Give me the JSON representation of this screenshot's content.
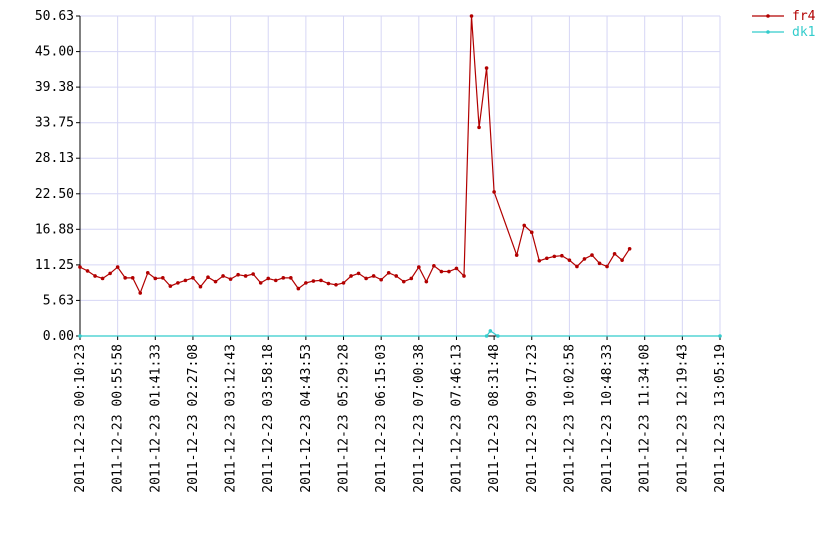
{
  "chart_data": {
    "type": "line",
    "title": "",
    "xlabel": "",
    "ylabel": "",
    "ylim": [
      0,
      50.63
    ],
    "y_ticks": [
      "0.00",
      "5.63",
      "11.25",
      "16.88",
      "22.50",
      "28.13",
      "33.75",
      "39.38",
      "45.00",
      "50.63"
    ],
    "x_ticks": [
      "2011-12-23 00:10:23",
      "2011-12-23 00:55:58",
      "2011-12-23 01:41:33",
      "2011-12-23 02:27:08",
      "2011-12-23 03:12:43",
      "2011-12-23 03:58:18",
      "2011-12-23 04:43:53",
      "2011-12-23 05:29:28",
      "2011-12-23 06:15:03",
      "2011-12-23 07:00:38",
      "2011-12-23 07:46:13",
      "2011-12-23 08:31:48",
      "2011-12-23 09:17:23",
      "2011-12-23 10:02:58",
      "2011-12-23 10:48:33",
      "2011-12-23 11:34:08",
      "2011-12-23 12:19:43",
      "2011-12-23 13:05:19"
    ],
    "grid": true,
    "legend_position": "top-right",
    "series": [
      {
        "name": "fr4",
        "color": "#b20000",
        "points": [
          {
            "x": "2011-12-23 00:10:23",
            "y": 10.9
          },
          {
            "x": "2011-12-23 00:19:30",
            "y": 10.3
          },
          {
            "x": "2011-12-23 00:28:37",
            "y": 9.5
          },
          {
            "x": "2011-12-23 00:37:44",
            "y": 9.1
          },
          {
            "x": "2011-12-23 00:46:51",
            "y": 9.9
          },
          {
            "x": "2011-12-23 00:55:58",
            "y": 10.9
          },
          {
            "x": "2011-12-23 01:05:05",
            "y": 9.2
          },
          {
            "x": "2011-12-23 01:14:12",
            "y": 9.2
          },
          {
            "x": "2011-12-23 01:23:19",
            "y": 6.8
          },
          {
            "x": "2011-12-23 01:32:26",
            "y": 10.0
          },
          {
            "x": "2011-12-23 01:41:33",
            "y": 9.1
          },
          {
            "x": "2011-12-23 01:50:40",
            "y": 9.2
          },
          {
            "x": "2011-12-23 01:59:47",
            "y": 7.9
          },
          {
            "x": "2011-12-23 02:08:54",
            "y": 8.4
          },
          {
            "x": "2011-12-23 02:18:01",
            "y": 8.8
          },
          {
            "x": "2011-12-23 02:27:08",
            "y": 9.2
          },
          {
            "x": "2011-12-23 02:36:15",
            "y": 7.8
          },
          {
            "x": "2011-12-23 02:45:22",
            "y": 9.3
          },
          {
            "x": "2011-12-23 02:54:29",
            "y": 8.6
          },
          {
            "x": "2011-12-23 03:03:36",
            "y": 9.5
          },
          {
            "x": "2011-12-23 03:12:43",
            "y": 9.0
          },
          {
            "x": "2011-12-23 03:21:50",
            "y": 9.7
          },
          {
            "x": "2011-12-23 03:30:57",
            "y": 9.5
          },
          {
            "x": "2011-12-23 03:40:04",
            "y": 9.8
          },
          {
            "x": "2011-12-23 03:49:11",
            "y": 8.4
          },
          {
            "x": "2011-12-23 03:58:18",
            "y": 9.1
          },
          {
            "x": "2011-12-23 04:07:25",
            "y": 8.8
          },
          {
            "x": "2011-12-23 04:16:32",
            "y": 9.2
          },
          {
            "x": "2011-12-23 04:25:39",
            "y": 9.2
          },
          {
            "x": "2011-12-23 04:34:46",
            "y": 7.5
          },
          {
            "x": "2011-12-23 04:43:53",
            "y": 8.4
          },
          {
            "x": "2011-12-23 04:53:00",
            "y": 8.7
          },
          {
            "x": "2011-12-23 05:02:07",
            "y": 8.8
          },
          {
            "x": "2011-12-23 05:11:14",
            "y": 8.3
          },
          {
            "x": "2011-12-23 05:20:21",
            "y": 8.1
          },
          {
            "x": "2011-12-23 05:29:28",
            "y": 8.4
          },
          {
            "x": "2011-12-23 05:38:35",
            "y": 9.5
          },
          {
            "x": "2011-12-23 05:47:42",
            "y": 9.9
          },
          {
            "x": "2011-12-23 05:56:49",
            "y": 9.1
          },
          {
            "x": "2011-12-23 06:05:56",
            "y": 9.5
          },
          {
            "x": "2011-12-23 06:15:03",
            "y": 8.9
          },
          {
            "x": "2011-12-23 06:24:10",
            "y": 10.0
          },
          {
            "x": "2011-12-23 06:33:17",
            "y": 9.5
          },
          {
            "x": "2011-12-23 06:42:24",
            "y": 8.6
          },
          {
            "x": "2011-12-23 06:51:31",
            "y": 9.1
          },
          {
            "x": "2011-12-23 07:00:38",
            "y": 10.9
          },
          {
            "x": "2011-12-23 07:09:45",
            "y": 8.6
          },
          {
            "x": "2011-12-23 07:18:52",
            "y": 11.1
          },
          {
            "x": "2011-12-23 07:27:59",
            "y": 10.2
          },
          {
            "x": "2011-12-23 07:37:06",
            "y": 10.2
          },
          {
            "x": "2011-12-23 07:46:13",
            "y": 10.7
          },
          {
            "x": "2011-12-23 07:55:20",
            "y": 9.5
          },
          {
            "x": "2011-12-23 08:04:27",
            "y": 50.63
          },
          {
            "x": "2011-12-23 08:13:34",
            "y": 33.0
          },
          {
            "x": "2011-12-23 08:22:41",
            "y": 42.4
          },
          {
            "x": "2011-12-23 08:31:48",
            "y": 22.8
          },
          {
            "x": "2011-12-23 08:59:09",
            "y": 12.8
          },
          {
            "x": "2011-12-23 09:08:16",
            "y": 17.5
          },
          {
            "x": "2011-12-23 09:17:23",
            "y": 16.4
          },
          {
            "x": "2011-12-23 09:26:30",
            "y": 11.9
          },
          {
            "x": "2011-12-23 09:35:37",
            "y": 12.3
          },
          {
            "x": "2011-12-23 09:44:44",
            "y": 12.6
          },
          {
            "x": "2011-12-23 09:53:51",
            "y": 12.7
          },
          {
            "x": "2011-12-23 10:02:58",
            "y": 12.0
          },
          {
            "x": "2011-12-23 10:12:05",
            "y": 11.0
          },
          {
            "x": "2011-12-23 10:21:12",
            "y": 12.2
          },
          {
            "x": "2011-12-23 10:30:19",
            "y": 12.8
          },
          {
            "x": "2011-12-23 10:39:26",
            "y": 11.5
          },
          {
            "x": "2011-12-23 10:48:33",
            "y": 11.0
          },
          {
            "x": "2011-12-23 10:57:40",
            "y": 13.0
          },
          {
            "x": "2011-12-23 11:06:47",
            "y": 12.0
          },
          {
            "x": "2011-12-23 11:15:54",
            "y": 13.8
          }
        ]
      },
      {
        "name": "dk1",
        "color": "#33cccc",
        "points": [
          {
            "x": "2011-12-23 00:10:23",
            "y": 0
          },
          {
            "x": "2011-12-23 08:22:41",
            "y": 0
          },
          {
            "x": "2011-12-23 08:27:15",
            "y": 0.8
          },
          {
            "x": "2011-12-23 08:36:22",
            "y": 0
          },
          {
            "x": "2011-12-23 13:05:19",
            "y": 0
          }
        ]
      }
    ]
  }
}
